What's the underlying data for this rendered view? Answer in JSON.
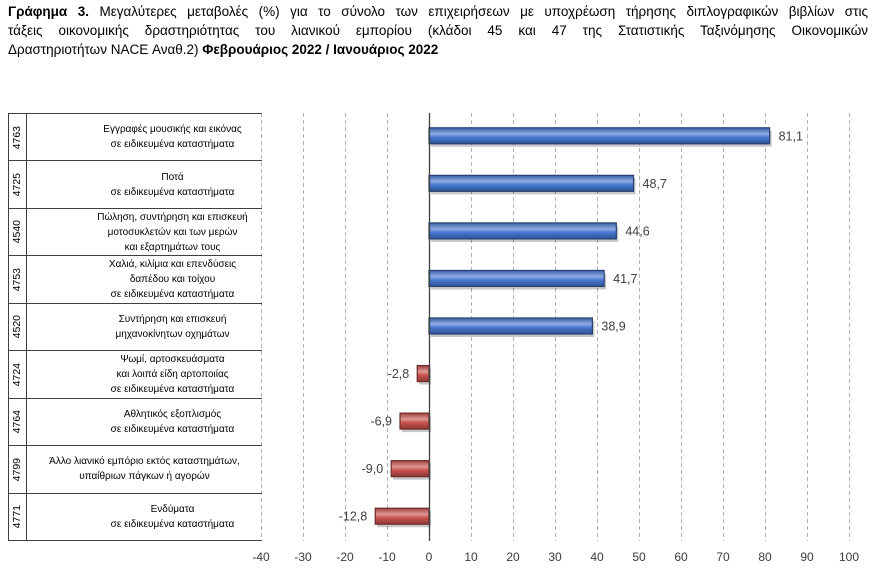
{
  "chart_data": {
    "type": "bar",
    "orientation": "horizontal",
    "title": {
      "label": "Γράφημα 3.",
      "lines": [
        "Μεγαλύτερες μεταβολές (%) για το σύνολο των επιχειρήσεων με υποχρέωση τήρησης διπλογραφικών βιβλίων στις",
        "τάξεις οικονομικής δραστηριότητας του λιανικού εμπορίου (κλάδοι 45 και 47 της Στατιστικής Ταξινόμησης Οικονομικών",
        "Δραστηριοτήτων NACE Αναθ.2)"
      ],
      "period": "Φεβρουάριος 2022 / Ιανουάριος 2022"
    },
    "categories": [
      {
        "code": "4763",
        "label": [
          "Εγγραφές μουσικής και εικόνας",
          "σε ειδικευμένα καταστήματα"
        ]
      },
      {
        "code": "4725",
        "label": [
          "Ποτά",
          "σε ειδικευμένα καταστήματα"
        ]
      },
      {
        "code": "4540",
        "label": [
          "Πώληση, συντήρηση και επισκευή",
          "μοτοσυκλετών και των μερών",
          "και εξαρτημάτων τους"
        ]
      },
      {
        "code": "4753",
        "label": [
          "Χαλιά, κιλίμια και επενδύσεις",
          "δαπέδου και τοίχου",
          "σε ειδικευμένα καταστήματα"
        ]
      },
      {
        "code": "4520",
        "label": [
          "Συντήρηση και επισκευή",
          "μηχανοκίνητων οχημάτων"
        ]
      },
      {
        "code": "4724",
        "label": [
          "Ψωμί, αρτοσκευάσματα",
          "και λοιπά είδη αρτοποιίας",
          "σε ειδικευμένα καταστήματα"
        ]
      },
      {
        "code": "4764",
        "label": [
          "Αθλητικός εξοπλισμός",
          "σε ειδικευμένα καταστήματα"
        ]
      },
      {
        "code": "4799",
        "label": [
          "Άλλο λιανικό εμπόριο εκτός καταστημάτων,",
          "υπαίθριων πάγκων ή αγορών"
        ]
      },
      {
        "code": "4771",
        "label": [
          "Ενδύματα",
          "σε ειδικευμένα καταστήματα"
        ]
      }
    ],
    "values": [
      81.1,
      48.7,
      44.6,
      41.7,
      38.9,
      -2.8,
      -6.9,
      -9.0,
      -12.8
    ],
    "data_labels": [
      "81,1",
      "48,7",
      "44,6",
      "41,7",
      "38,9",
      "-2,8",
      "-6,9",
      "-9,0",
      "-12,8"
    ],
    "xlim": [
      -40,
      100
    ],
    "x_ticks": [
      -40,
      -30,
      -20,
      -10,
      0,
      10,
      20,
      30,
      40,
      50,
      60,
      70,
      80,
      90,
      100
    ],
    "xlabel": "",
    "ylabel": "",
    "grid": true,
    "colors": {
      "positive": "#4677d1",
      "negative": "#c8514e"
    }
  }
}
